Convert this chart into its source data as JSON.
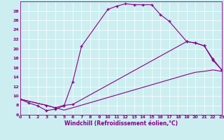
{
  "xlabel": "Windchill (Refroidissement éolien,°C)",
  "background_color": "#cceef0",
  "line_color": "#880088",
  "xlim": [
    0,
    23
  ],
  "ylim": [
    6,
    30
  ],
  "yticks": [
    6,
    8,
    10,
    12,
    14,
    16,
    18,
    20,
    22,
    24,
    26,
    28
  ],
  "xticks": [
    0,
    1,
    2,
    3,
    4,
    5,
    6,
    7,
    8,
    9,
    10,
    11,
    12,
    13,
    14,
    15,
    16,
    17,
    18,
    19,
    20,
    21,
    22,
    23
  ],
  "curve1_x": [
    0,
    1,
    2,
    3,
    4,
    5,
    6,
    7,
    10,
    11,
    12,
    13,
    14,
    15,
    16,
    17,
    19,
    20,
    21,
    22,
    23
  ],
  "curve1_y": [
    9.3,
    8.5,
    7.9,
    6.9,
    7.2,
    7.9,
    13.0,
    20.5,
    28.3,
    29.0,
    29.5,
    29.3,
    29.3,
    29.3,
    27.2,
    25.8,
    21.5,
    21.2,
    20.6,
    17.5,
    15.5
  ],
  "curve2_x": [
    0,
    3,
    4,
    5,
    6,
    19,
    20,
    21,
    22,
    23
  ],
  "curve2_y": [
    9.3,
    8.0,
    7.5,
    8.0,
    8.2,
    21.5,
    21.2,
    20.6,
    17.8,
    15.5
  ],
  "curve3_x": [
    0,
    3,
    4,
    5,
    6,
    19,
    20,
    21,
    22,
    23
  ],
  "curve3_y": [
    9.3,
    8.0,
    7.5,
    7.0,
    7.5,
    14.5,
    15.0,
    15.2,
    15.5,
    15.2
  ]
}
